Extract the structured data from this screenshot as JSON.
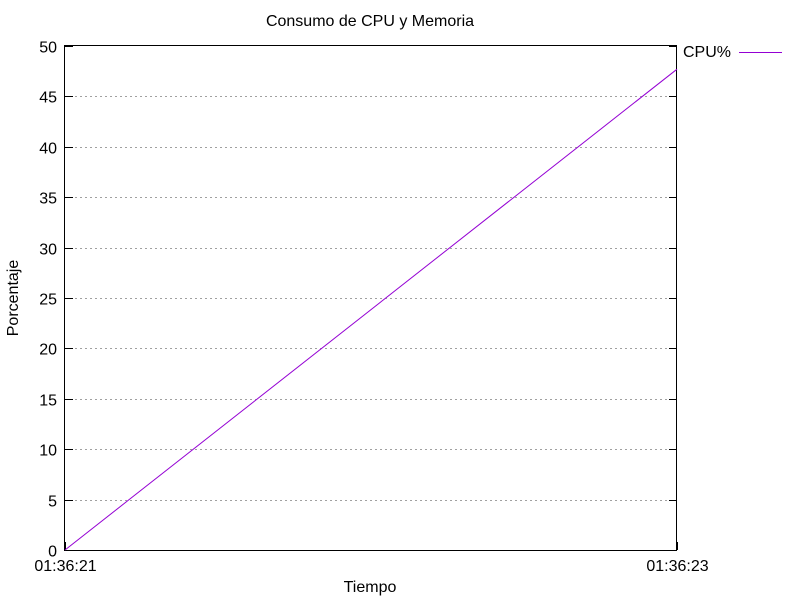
{
  "chart_data": {
    "type": "line",
    "title": "Consumo de CPU y Memoria",
    "xlabel": "Tiempo",
    "ylabel": "Porcentaje",
    "x_ticks": [
      "01:36:21",
      "01:36:23"
    ],
    "xlim": [
      "01:36:21",
      "01:36:23"
    ],
    "ylim": [
      0,
      50
    ],
    "y_ticks": [
      0,
      5,
      10,
      15,
      20,
      25,
      30,
      35,
      40,
      45,
      50
    ],
    "grid": {
      "horizontal": true,
      "vertical": false
    },
    "legend_placement": "top-right-outside",
    "x": [
      "01:36:21",
      "01:36:23"
    ],
    "series": [
      {
        "name": "CPU%",
        "color": "#9400d3",
        "values": [
          0,
          47.7
        ]
      }
    ]
  }
}
